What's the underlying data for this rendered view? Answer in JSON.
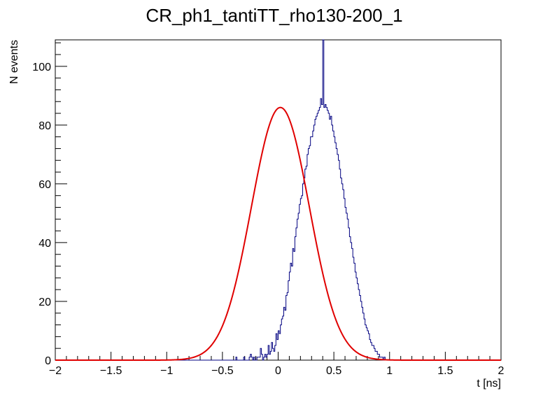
{
  "chart_data": {
    "type": "histogram",
    "title": "CR_ph1_tantiTT_rho130-200_1",
    "xlabel": "t [ns]",
    "ylabel": "N events",
    "xlim": [
      -2,
      2
    ],
    "ylim": [
      0,
      109
    ],
    "x_ticks": [
      -2,
      -1.5,
      -1,
      -0.5,
      0,
      0.5,
      1,
      1.5,
      2
    ],
    "x_tick_labels": [
      "−2",
      "−1.5",
      "−1",
      "−0.5",
      "0",
      "0.5",
      "1",
      "1.5",
      "2"
    ],
    "y_ticks": [
      0,
      20,
      40,
      60,
      80,
      100
    ],
    "y_tick_labels": [
      "0",
      "20",
      "40",
      "60",
      "80",
      "100"
    ],
    "grid": false,
    "legend": "none",
    "series": [
      {
        "kind": "histogram",
        "color": "#000080",
        "bin_edges_range": [
          -2,
          2
        ],
        "n_bins": 400,
        "values": [
          0,
          0,
          0,
          0,
          0,
          0,
          0,
          0,
          0,
          0,
          0,
          0,
          0,
          0,
          0,
          0,
          0,
          0,
          0,
          0,
          0,
          0,
          0,
          0,
          0,
          0,
          0,
          0,
          0,
          0,
          0,
          0,
          0,
          0,
          0,
          0,
          0,
          0,
          0,
          0,
          0,
          0,
          0,
          0,
          0,
          0,
          0,
          0,
          0,
          0,
          0,
          0,
          0,
          0,
          0,
          0,
          0,
          0,
          0,
          0,
          0,
          0,
          0,
          0,
          0,
          0,
          0,
          0,
          0,
          0,
          0,
          0,
          0,
          0,
          0,
          0,
          0,
          0,
          0,
          0,
          0,
          0,
          0,
          0,
          0,
          0,
          0,
          0,
          0,
          0,
          0,
          0,
          0,
          0,
          0,
          0,
          0,
          0,
          0,
          0,
          0,
          0,
          0,
          0,
          0,
          0,
          0,
          0,
          0,
          0,
          0,
          0,
          0,
          0,
          0,
          0,
          0,
          0,
          0,
          0,
          0,
          0,
          0,
          0,
          0,
          0,
          0,
          0,
          0,
          0,
          0,
          0,
          0,
          0,
          0,
          0,
          0,
          0,
          0,
          0,
          0,
          0,
          0,
          0,
          0,
          0,
          0,
          0,
          0,
          0,
          0,
          0,
          0,
          0,
          0,
          0,
          0,
          0,
          0,
          0,
          0,
          0,
          1,
          0,
          0,
          0,
          0,
          0,
          0,
          1,
          0,
          0,
          0,
          0,
          1,
          2,
          1,
          0,
          1,
          0,
          0,
          1,
          1,
          1,
          4,
          2,
          0,
          1,
          2,
          1,
          2,
          5,
          2,
          3,
          6,
          4,
          3,
          5,
          9,
          7,
          10,
          9,
          12,
          14,
          15,
          18,
          17,
          22,
          23,
          27,
          30,
          33,
          32,
          38,
          37,
          42,
          45,
          48,
          50,
          53,
          55,
          56,
          60,
          62,
          65,
          66,
          70,
          72,
          73,
          76,
          76,
          78,
          80,
          82,
          83,
          84,
          85,
          86,
          89,
          87,
          109,
          86,
          87,
          86,
          85,
          84,
          82,
          83,
          80,
          78,
          76,
          74,
          72,
          70,
          68,
          65,
          62,
          60,
          58,
          55,
          52,
          50,
          48,
          45,
          42,
          40,
          38,
          35,
          33,
          30,
          28,
          26,
          24,
          22,
          20,
          18,
          16,
          14,
          12,
          11,
          10,
          9,
          7,
          6,
          5,
          5,
          4,
          3,
          3,
          2,
          2,
          1,
          1,
          1,
          0,
          1,
          0,
          0,
          0,
          0,
          0,
          0,
          0,
          0,
          0,
          0,
          0,
          0,
          0,
          0,
          0,
          0,
          0,
          0,
          0,
          0,
          0,
          0,
          0,
          0,
          0,
          0,
          0,
          0,
          0,
          0,
          0,
          0,
          0,
          0,
          0,
          0,
          0,
          0,
          0,
          0,
          0,
          0,
          0,
          0,
          0,
          0,
          0,
          0,
          0,
          0,
          0,
          0,
          0,
          0,
          0,
          0,
          0,
          0,
          0,
          0,
          0,
          0,
          0,
          0,
          0,
          0,
          0,
          0,
          0,
          0,
          0,
          0,
          0,
          0,
          0,
          0,
          0,
          0,
          0,
          0,
          0,
          0,
          0,
          0,
          0,
          0,
          0,
          0,
          0,
          0,
          0,
          0,
          0,
          0,
          0,
          0,
          0,
          0,
          0,
          0,
          0,
          0,
          0,
          0
        ]
      },
      {
        "kind": "fit",
        "function": "gaussian",
        "color": "#e00000",
        "amplitude": 86,
        "mean": 0.02,
        "sigma": 0.26,
        "x_range": [
          -2,
          2
        ]
      }
    ]
  }
}
